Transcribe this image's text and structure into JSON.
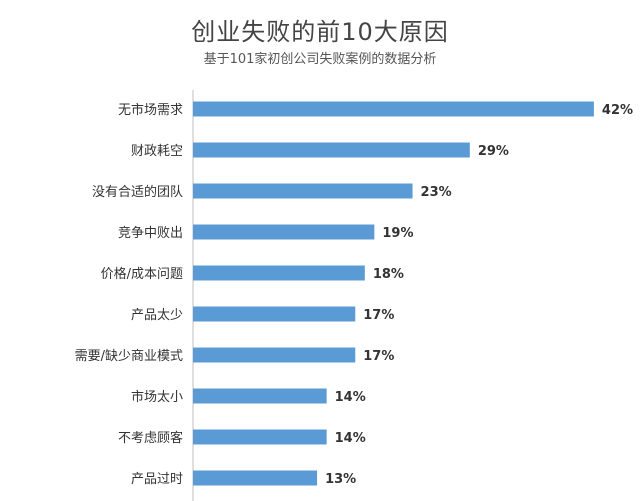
{
  "chart_data": {
    "type": "bar",
    "orientation": "horizontal",
    "title": "创业失败的前10大原因",
    "subtitle": "基于101家初创公司失败案例的数据分析",
    "categories": [
      "无市场需求",
      "财政耗空",
      "没有合适的团队",
      "竞争中败出",
      "价格/成本问题",
      "产品太少",
      "需要/缺少商业模式",
      "市场太小",
      "不考虑顾客",
      "产品过时"
    ],
    "values": [
      42,
      29,
      23,
      19,
      18,
      17,
      17,
      14,
      14,
      13
    ],
    "value_labels": [
      "42%",
      "29%",
      "23%",
      "19%",
      "18%",
      "17%",
      "17%",
      "14%",
      "14%",
      "13%"
    ],
    "xlim": [
      0,
      44
    ],
    "grid": false,
    "bar_color": "#5b9bd5",
    "axis_color": "#bfbfbf"
  }
}
